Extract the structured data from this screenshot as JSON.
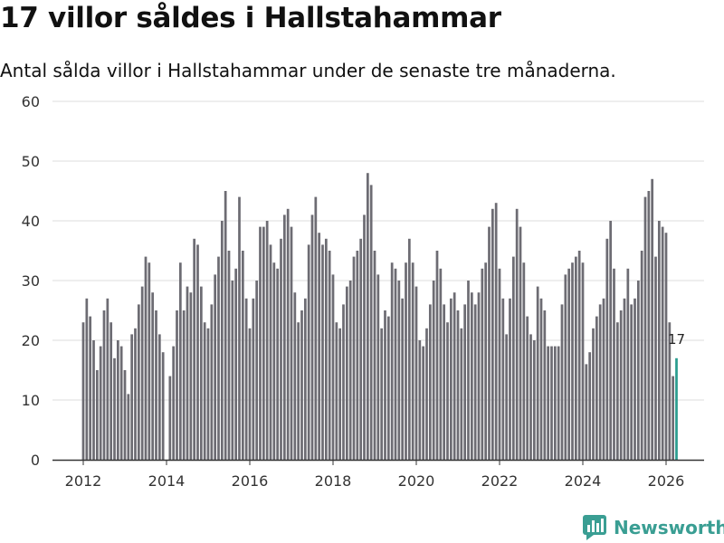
{
  "title": "17 villor såldes i Hallstahammar",
  "subtitle": "Antal sålda villor i Hallstahammar under de senaste tre månaderna.",
  "brand": "Newsworthy",
  "colors": {
    "bar": "#6d6c73",
    "highlight": "#2a9d8f",
    "grid": "#dedede",
    "axis": "#333333",
    "brand": "#3a9e93"
  },
  "chart_data": {
    "type": "bar",
    "title": "17 villor såldes i Hallstahammar",
    "xlabel": "",
    "ylabel": "",
    "ylim": [
      0,
      60
    ],
    "yticks": [
      0,
      10,
      20,
      30,
      40,
      50,
      60
    ],
    "xticks": [
      "2012",
      "2014",
      "2016",
      "2018",
      "2020",
      "2022",
      "2024",
      "2026"
    ],
    "start": "2012-01",
    "frequency": "monthly (rolling 3-month total)",
    "values": [
      23,
      27,
      24,
      20,
      15,
      19,
      25,
      27,
      23,
      17,
      20,
      19,
      15,
      11,
      21,
      22,
      26,
      29,
      34,
      33,
      28,
      25,
      21,
      18,
      0,
      14,
      19,
      25,
      33,
      25,
      29,
      28,
      37,
      36,
      29,
      23,
      22,
      26,
      31,
      34,
      40,
      45,
      35,
      30,
      32,
      44,
      35,
      27,
      22,
      27,
      30,
      39,
      39,
      40,
      36,
      33,
      32,
      37,
      41,
      42,
      39,
      28,
      23,
      25,
      27,
      36,
      41,
      44,
      38,
      36,
      37,
      35,
      31,
      23,
      22,
      26,
      29,
      30,
      34,
      35,
      37,
      41,
      48,
      46,
      35,
      31,
      22,
      25,
      24,
      33,
      32,
      30,
      27,
      33,
      37,
      33,
      29,
      20,
      19,
      22,
      26,
      30,
      35,
      32,
      26,
      23,
      27,
      28,
      25,
      22,
      26,
      30,
      28,
      26,
      28,
      32,
      33,
      39,
      42,
      43,
      32,
      27,
      21,
      27,
      34,
      42,
      39,
      33,
      24,
      21,
      20,
      29,
      27,
      25,
      19,
      19,
      19,
      19,
      26,
      31,
      32,
      33,
      34,
      35,
      33,
      16,
      18,
      22,
      24,
      26,
      27,
      37,
      40,
      32,
      23,
      25,
      27,
      32,
      26,
      27,
      30,
      35,
      44,
      45,
      47,
      34,
      40,
      39,
      38,
      23,
      14,
      17
    ],
    "highlight_label": "17"
  }
}
